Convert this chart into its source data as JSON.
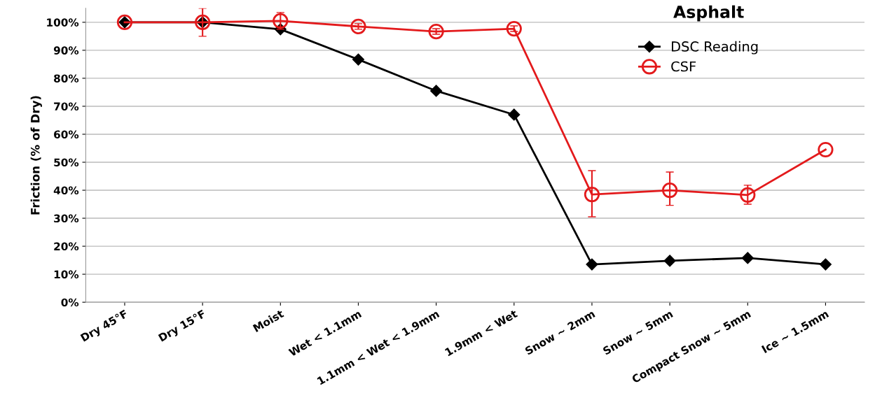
{
  "chart_data": {
    "type": "line",
    "title": "Asphalt",
    "ylabel": "Friction (% of Dry)",
    "categories": [
      "Dry 45°F",
      "Dry 15°F",
      "Moist",
      "Wet < 1.1mm",
      "1.1mm < Wet < 1.9mm",
      "1.9mm < Wet",
      "Snow ~ 2mm",
      "Snow ~ 5mm",
      "Compact Snow ~ 5mm",
      "Ice ~ 1.5mm"
    ],
    "series": [
      {
        "name": "DSC Reading",
        "color": "#000000",
        "marker": "diamond",
        "values": [
          100,
          100,
          97.5,
          86.7,
          75.5,
          67,
          13.5,
          14.8,
          15.8,
          13.5
        ]
      },
      {
        "name": "CSF",
        "color": "#e31a1c",
        "marker": "circle",
        "values": [
          100,
          100,
          100.5,
          98.5,
          96.7,
          97.7,
          38.5,
          40,
          38.3,
          54.5
        ],
        "errors": [
          null,
          5,
          3,
          1,
          1,
          1,
          [
            30.5,
            47
          ],
          [
            34.6,
            46.5
          ],
          [
            35,
            41.8
          ],
          null
        ]
      }
    ],
    "ylim": [
      0,
      105
    ],
    "yticks": [
      {
        "value": 0,
        "label": "0%"
      },
      {
        "value": 10,
        "label": "10%"
      },
      {
        "value": 20,
        "label": "20%"
      },
      {
        "value": 30,
        "label": "30%"
      },
      {
        "value": 40,
        "label": "40%"
      },
      {
        "value": 50,
        "label": "50%"
      },
      {
        "value": 60,
        "label": "60%"
      },
      {
        "value": 70,
        "label": "70%"
      },
      {
        "value": 80,
        "label": "80%"
      },
      {
        "value": 90,
        "label": "90%"
      },
      {
        "value": 100,
        "label": "100%"
      }
    ],
    "grid": "y",
    "legend": "top right"
  }
}
